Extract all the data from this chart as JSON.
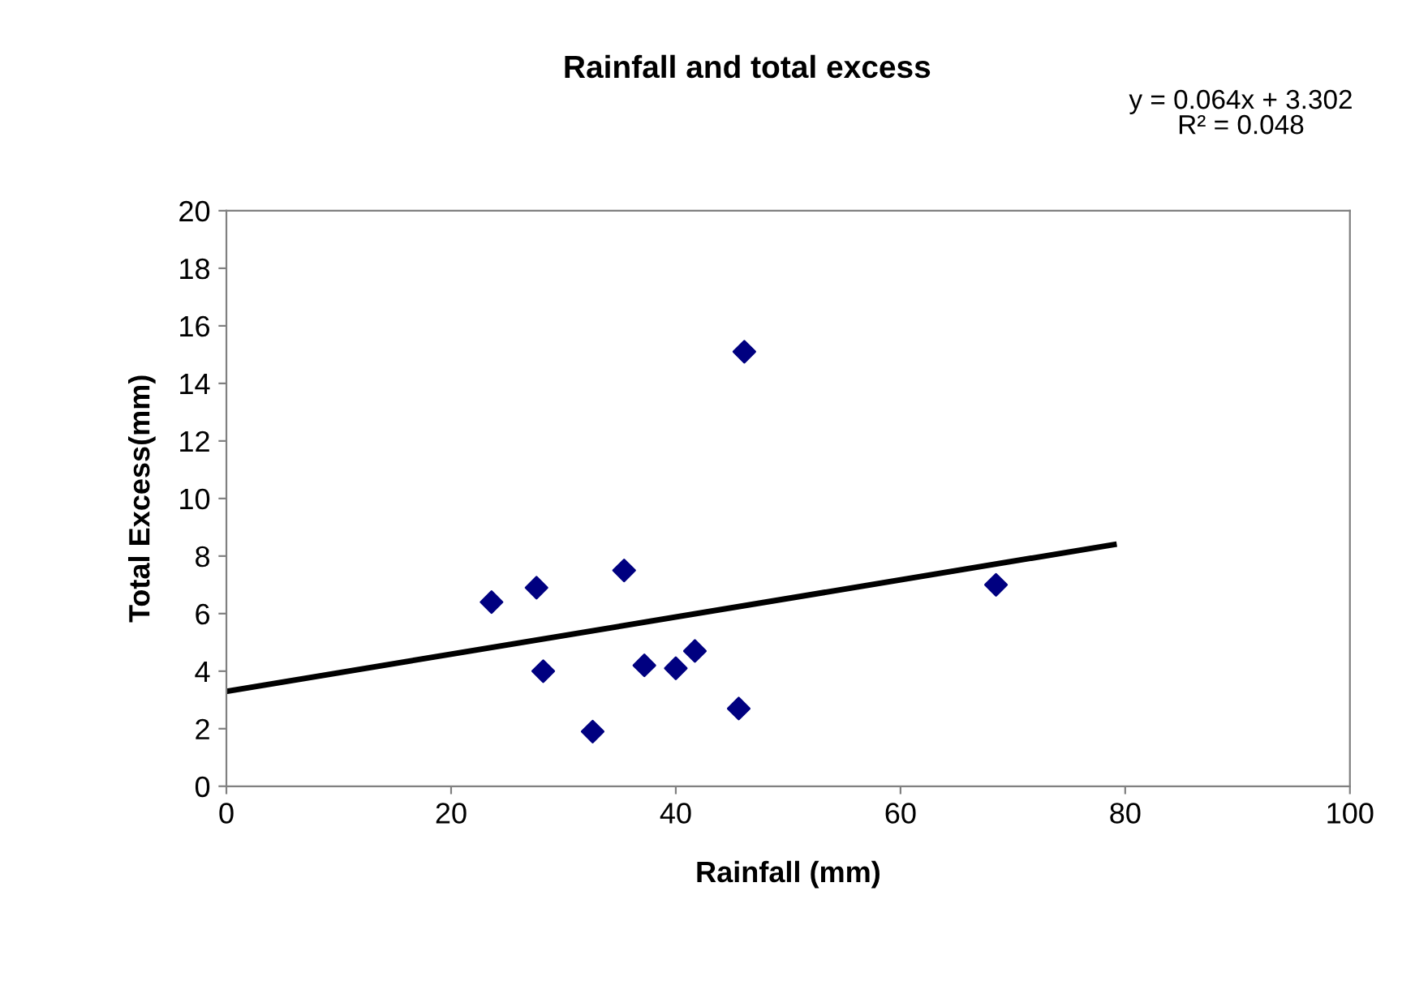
{
  "chart_data": {
    "type": "scatter",
    "title": "Rainfall and total excess",
    "xlabel": "Rainfall (mm)",
    "ylabel": "Total Excess(mm)",
    "xlim": [
      0,
      100
    ],
    "xticks": [
      0,
      20,
      40,
      60,
      80,
      100
    ],
    "ylim": [
      0,
      20
    ],
    "yticks": [
      0,
      2,
      4,
      6,
      8,
      10,
      12,
      14,
      16,
      18,
      20
    ],
    "grid": false,
    "legend": false,
    "annotations": [
      "y = 0.064x + 3.302\nR² = 0.048"
    ],
    "series": [
      {
        "color": "#000080",
        "marker": "diamond",
        "x": [
          23.6,
          27.6,
          35.4,
          46.1,
          68.5,
          28.2,
          37.2,
          40.0,
          41.7,
          45.6,
          32.6
        ],
        "values": [
          6.4,
          6.9,
          7.5,
          15.1,
          7.0,
          4.0,
          4.2,
          4.1,
          4.7,
          2.7,
          1.9
        ]
      },
      {
        "type": "line",
        "color": "#000000",
        "marker": "none",
        "line_style": "solid",
        "x": [
          0,
          79
        ],
        "values": [
          3.3,
          8.4
        ]
      }
    ]
  }
}
